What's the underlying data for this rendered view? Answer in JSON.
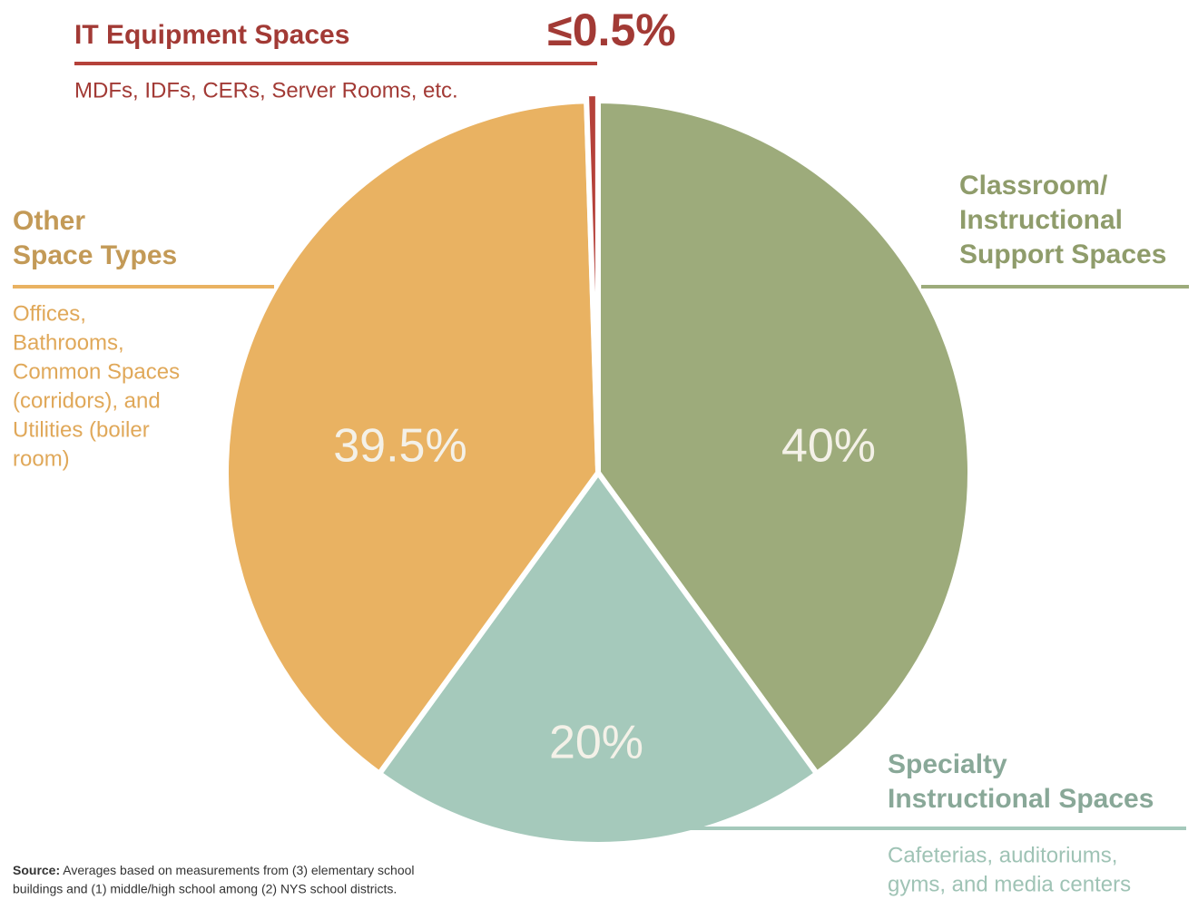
{
  "chart_data": {
    "type": "pie",
    "categories": [
      [
        "Classroom/",
        "Instructional",
        "Support Spaces"
      ],
      [
        "Specialty",
        "Instructional Spaces"
      ],
      [
        "Other",
        "Space Types"
      ],
      [
        "IT Equipment Spaces"
      ]
    ],
    "descriptions": [
      [],
      [
        "Cafeterias, auditoriums,",
        "gyms, and media centers"
      ],
      [
        "Offices,",
        "Bathrooms,",
        "Common Spaces",
        "(corridors), and",
        "Utilities (boiler",
        "room)"
      ],
      [
        "MDFs, IDFs, CERs, Server Rooms, etc."
      ]
    ],
    "values": [
      40,
      20,
      39.5,
      0.5
    ],
    "value_labels": [
      "40%",
      "20%",
      "39.5%",
      "≤0.5%"
    ],
    "colors": [
      "#9dab7b",
      "#a5c9bb",
      "#e9b262",
      "#b5413a"
    ],
    "label_colors": [
      "#8f9c6b",
      "#89a898",
      "#c39a57",
      "#a23a35"
    ],
    "description_colors": [
      "#8f9c6b",
      "#9fc3b5",
      "#e0a859",
      "#a23a35"
    ],
    "source": {
      "label": "Source:",
      "lines": [
        "Averages based on measurements from (3) elementary school",
        "buildings and (1) middle/high school among (2) NYS school districts."
      ]
    }
  }
}
